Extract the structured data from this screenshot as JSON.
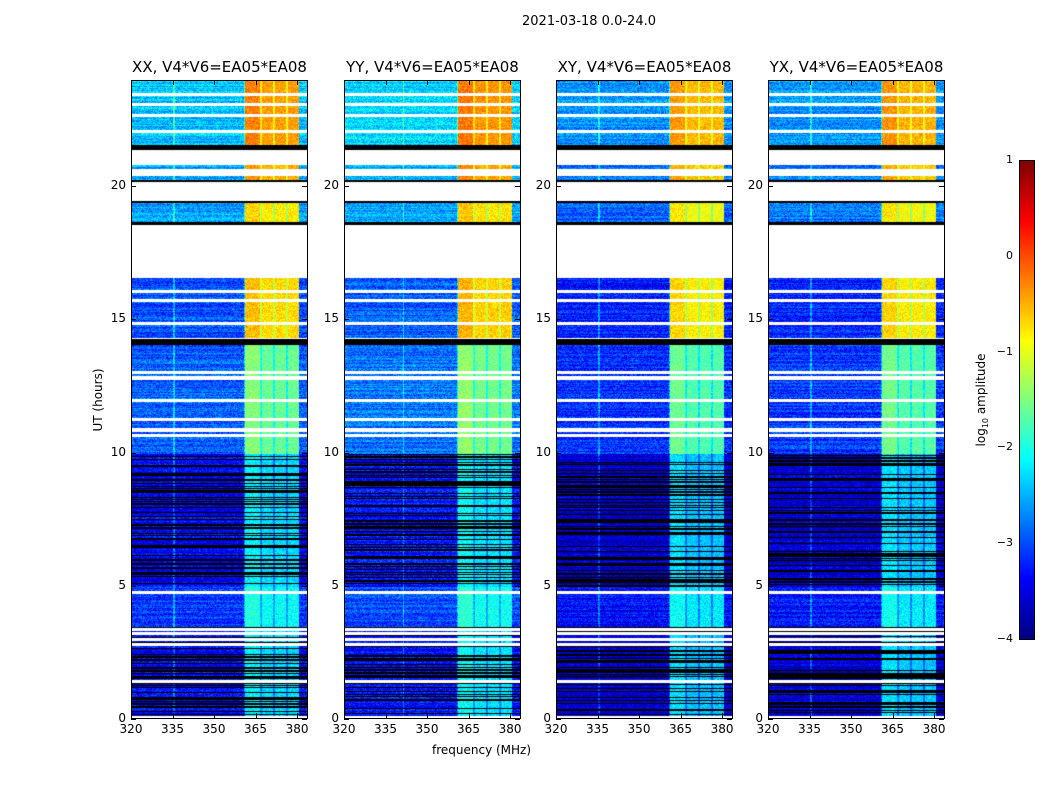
{
  "figure": {
    "suptitle": "2021-03-18 0.0-24.0",
    "xlabel": "frequency (MHz)",
    "ylabel": "UT (hours)",
    "colorbar_label_main": "log",
    "colorbar_label_sub": "10",
    "colorbar_label_rest": " amplitude"
  },
  "chart_data": {
    "type": "heatmap",
    "xlim": [
      320,
      384
    ],
    "ylim": [
      0,
      24
    ],
    "xticks": [
      320,
      335,
      350,
      365,
      380
    ],
    "yticks": [
      0,
      5,
      10,
      15,
      20
    ],
    "colormap": "jet",
    "clim": [
      -4,
      1
    ],
    "colorbar_ticks": [
      1,
      0,
      -1,
      -2,
      -3,
      -4
    ],
    "bright_band_mhz": [
      360.5,
      380
    ],
    "panels": [
      {
        "title": "XX, V4*V6=EA05*EA08",
        "bg_offset": 0.0,
        "rfi_mhz": 335
      },
      {
        "title": "YY, V4*V6=EA05*EA08",
        "bg_offset": 0.1,
        "rfi_mhz": 341
      },
      {
        "title": "XY, V4*V6=EA05*EA08",
        "bg_offset": -0.25,
        "rfi_mhz": 335
      },
      {
        "title": "YX, V4*V6=EA05*EA08",
        "bg_offset": -0.2,
        "rfi_mhz": 335
      }
    ],
    "segments": [
      {
        "start": 0.0,
        "end": 3.5,
        "background": -3.4,
        "band": -2.3,
        "flagged_rows": true
      },
      {
        "start": 3.5,
        "end": 5.0,
        "background": -3.1,
        "band": -2.1,
        "flagged_rows": false
      },
      {
        "start": 5.0,
        "end": 10.0,
        "background": -3.4,
        "band": -2.3,
        "flagged_rows": true
      },
      {
        "start": 10.0,
        "end": 14.1,
        "background": -2.9,
        "band": -1.6,
        "flagged_rows": false
      },
      {
        "start": 14.35,
        "end": 16.6,
        "background": -3.0,
        "band": -0.7,
        "flagged_rows": false
      },
      {
        "start": 18.65,
        "end": 19.45,
        "background": -2.6,
        "band": -0.8,
        "flagged_rows": false
      },
      {
        "start": 20.3,
        "end": 20.45,
        "background": -2.6,
        "band": -0.5,
        "flagged_rows": false
      },
      {
        "start": 20.7,
        "end": 20.85,
        "background": -2.6,
        "band": -0.5,
        "flagged_rows": false
      },
      {
        "start": 21.6,
        "end": 24.0,
        "background": -2.4,
        "band": -0.4,
        "flagged_rows": false
      }
    ],
    "blank_rows_hours": [
      0.1,
      1.45,
      2.85,
      3.05,
      3.25,
      3.4,
      4.8,
      10.7,
      10.9,
      11.3,
      12.0,
      12.85,
      13.05,
      14.9,
      15.75,
      16.1,
      22.1,
      22.7,
      23.1,
      23.5
    ],
    "black_rows_hours": [
      14.15,
      14.25,
      18.65,
      19.45,
      20.25,
      21.45,
      21.55
    ]
  }
}
